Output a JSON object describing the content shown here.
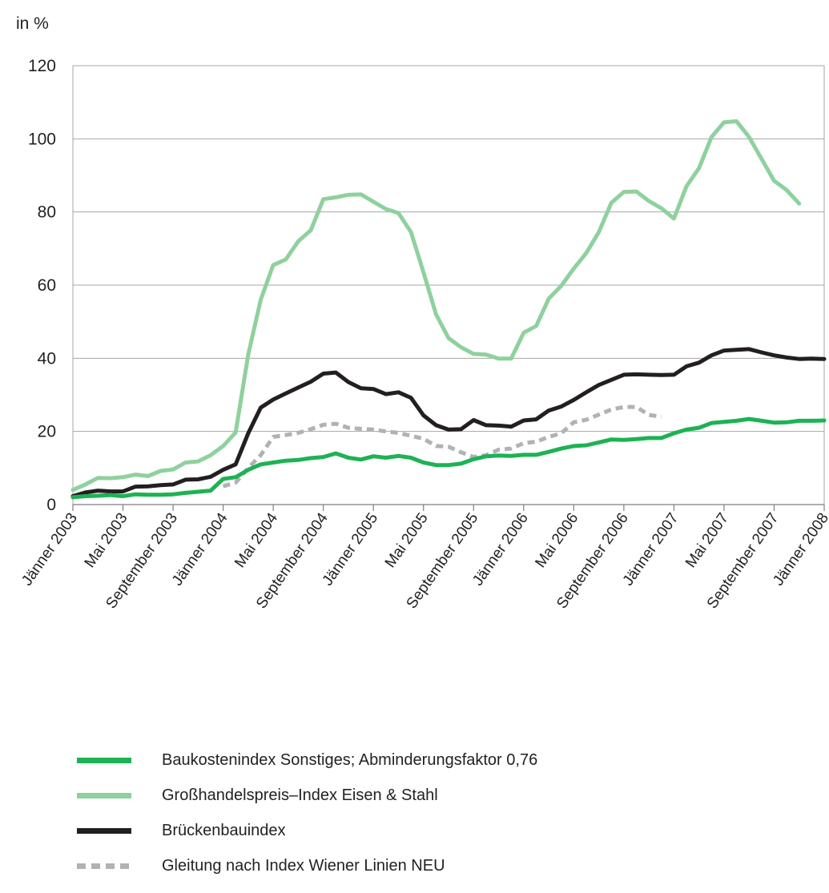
{
  "chart_data": {
    "type": "line",
    "ylabel": "in %",
    "ylim": [
      0,
      120
    ],
    "yticks": [
      "0",
      "20",
      "40",
      "60",
      "80",
      "100",
      "120"
    ],
    "xlim": [
      0,
      60
    ],
    "xticks": [
      {
        "pos": 0,
        "label": "Jänner 2003"
      },
      {
        "pos": 4,
        "label": "Mai 2003"
      },
      {
        "pos": 8,
        "label": "September 2003"
      },
      {
        "pos": 12,
        "label": "Jänner 2004"
      },
      {
        "pos": 16,
        "label": "Mai 2004"
      },
      {
        "pos": 20,
        "label": "September 2004"
      },
      {
        "pos": 24,
        "label": "Jänner 2005"
      },
      {
        "pos": 28,
        "label": "Mai 2005"
      },
      {
        "pos": 32,
        "label": "September 2005"
      },
      {
        "pos": 36,
        "label": "Jänner 2006"
      },
      {
        "pos": 40,
        "label": "Mai 2006"
      },
      {
        "pos": 44,
        "label": "September 2006"
      },
      {
        "pos": 48,
        "label": "Jänner 2007"
      },
      {
        "pos": 52,
        "label": "Mai 2007"
      },
      {
        "pos": 56,
        "label": "September 2007"
      },
      {
        "pos": 60,
        "label": "Jänner 2008"
      }
    ],
    "grid": "horizontal",
    "legend_position": "bottom",
    "series": [
      {
        "name": "Baukostenindex Sonstiges; Abminderungsfaktor 0,76",
        "color": "#1db254",
        "style": "solid",
        "x": [
          0,
          1,
          2,
          3,
          4,
          5,
          6,
          7,
          8,
          9,
          10,
          11,
          12,
          13,
          14,
          15,
          16,
          17,
          18,
          19,
          20,
          21,
          22,
          23,
          24,
          25,
          26,
          27,
          28,
          29,
          30,
          31,
          32,
          33,
          34,
          35,
          36,
          37,
          38,
          39,
          40,
          41,
          42,
          43,
          44,
          45,
          46,
          47,
          48,
          49,
          50,
          51,
          52,
          53,
          54,
          55,
          56,
          57,
          58,
          59,
          60
        ],
        "values": [
          2,
          2.3,
          2.4,
          2.6,
          2.3,
          2.8,
          2.7,
          2.7,
          2.8,
          3.2,
          3.5,
          3.8,
          7,
          7.5,
          9.5,
          11,
          11.5,
          12,
          12.2,
          12.7,
          13,
          14,
          12.8,
          12.3,
          13.2,
          12.8,
          13.3,
          12.8,
          11.5,
          10.8,
          10.8,
          11.2,
          12.4,
          13.2,
          13.4,
          13.3,
          13.6,
          13.6,
          14.4,
          15.3,
          16,
          16.2,
          17,
          17.8,
          17.7,
          17.9,
          18.2,
          18.2,
          19.5,
          20.5,
          21,
          22.3,
          22.6,
          22.9,
          23.4,
          22.9,
          22.4,
          22.5,
          22.9,
          22.9,
          23
        ]
      },
      {
        "name": "Großhandelspreis–Index Eisen & Stahl",
        "color": "#8fd19e",
        "style": "solid",
        "x": [
          0,
          1,
          2,
          3,
          4,
          5,
          6,
          7,
          8,
          9,
          10,
          11,
          12,
          13,
          14,
          15,
          16,
          17,
          18,
          19,
          20,
          21,
          22,
          23,
          24,
          25,
          26,
          27,
          28,
          29,
          30,
          31,
          32,
          33,
          34,
          35,
          36,
          37,
          38,
          39,
          40,
          41,
          42,
          43,
          44,
          45,
          46,
          47,
          48,
          49,
          50,
          51,
          52,
          53,
          54,
          55,
          56,
          57,
          58,
          59
        ],
        "values": [
          4,
          5.5,
          7.3,
          7.2,
          7.5,
          8.2,
          7.8,
          9.2,
          9.6,
          11.5,
          11.8,
          13.5,
          16,
          19.7,
          41,
          56,
          65.5,
          67,
          72,
          75,
          83.5,
          84,
          84.7,
          84.8,
          82.8,
          80.8,
          79.7,
          74.5,
          63.5,
          52,
          45.5,
          43,
          41.2,
          41,
          39.9,
          39.9,
          47,
          48.8,
          56.3,
          59.8,
          64.5,
          68.8,
          74.5,
          82.5,
          85.5,
          85.6,
          83,
          81,
          78.2,
          87,
          92,
          100.5,
          104.5,
          104.8,
          100.5,
          94.5,
          88.5,
          86,
          82.3,
          null
        ]
      },
      {
        "name": "Brückenbauindex",
        "color": "#231f20",
        "style": "solid",
        "x": [
          0,
          1,
          2,
          3,
          4,
          5,
          6,
          7,
          8,
          9,
          10,
          11,
          12,
          13,
          14,
          15,
          16,
          17,
          18,
          19,
          20,
          21,
          22,
          23,
          24,
          25,
          26,
          27,
          28,
          29,
          30,
          31,
          32,
          33,
          34,
          35,
          36,
          37,
          38,
          39,
          40,
          41,
          42,
          43,
          44,
          45,
          46,
          47,
          48,
          49,
          50,
          51,
          52,
          53,
          54,
          55,
          56,
          57,
          58,
          59,
          60
        ],
        "values": [
          2.3,
          3.3,
          3.8,
          3.6,
          3.6,
          4.9,
          5,
          5.3,
          5.5,
          6.8,
          6.9,
          7.6,
          9.5,
          11,
          19.5,
          26.5,
          28.7,
          30.4,
          32,
          33.6,
          35.8,
          36.1,
          33.5,
          31.8,
          31.6,
          30.2,
          30.7,
          29.2,
          24.4,
          21.7,
          20.5,
          20.6,
          23.1,
          21.7,
          21.6,
          21.3,
          23,
          23.3,
          25.7,
          26.8,
          28.6,
          30.7,
          32.7,
          34.1,
          35.5,
          35.6,
          35.5,
          35.4,
          35.5,
          37.8,
          38.8,
          40.8,
          42.1,
          42.3,
          42.5,
          41.6,
          40.8,
          40.2,
          39.8,
          39.9,
          39.8
        ]
      },
      {
        "name": "Gleitung nach Index Wiener Linien NEU",
        "color": "#b0b2b5",
        "style": "dashed",
        "x": [
          12,
          13,
          14,
          15,
          16,
          17,
          18,
          19,
          20,
          21,
          22,
          23,
          24,
          25,
          26,
          27,
          28,
          29,
          30,
          31,
          32,
          33,
          34,
          35,
          36,
          37,
          38,
          39,
          40,
          41,
          42,
          43,
          44,
          45,
          46,
          47
        ],
        "values": [
          5,
          6,
          10,
          13.5,
          18.5,
          19,
          19.6,
          20.6,
          21.8,
          22.1,
          21,
          20.7,
          20.5,
          20,
          19.6,
          18.8,
          18,
          16,
          15.8,
          14.3,
          13,
          13.5,
          15,
          15.3,
          16.8,
          17.2,
          18.5,
          19.5,
          22.5,
          23.2,
          24.6,
          26,
          26.7,
          26.7,
          24.5,
          24
        ]
      }
    ]
  },
  "legend": {
    "items": [
      {
        "label": "Baukostenindex Sonstiges; Abminderungsfaktor 0,76",
        "color": "#1db254"
      },
      {
        "label": "Großhandelspreis–Index Eisen & Stahl",
        "color": "#8fd19e"
      },
      {
        "label": "Brückenbauindex",
        "color": "#231f20"
      },
      {
        "label": "Gleitung nach Index Wiener Linien NEU",
        "color": "#b0b2b5"
      }
    ]
  }
}
